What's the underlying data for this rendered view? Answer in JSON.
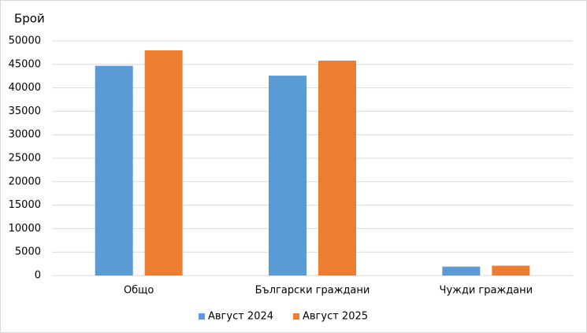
{
  "chart_data": {
    "type": "bar",
    "y_label": "Брой",
    "categories": [
      "Общо",
      "Български граждани",
      "Чужди граждани"
    ],
    "series": [
      {
        "name": "Август 2024",
        "color": "#5b9bd5",
        "values": [
          44700,
          42600,
          1900
        ]
      },
      {
        "name": "Август 2025",
        "color": "#ed7d31",
        "values": [
          48000,
          45800,
          2100
        ]
      }
    ],
    "ylim": [
      0,
      50000
    ],
    "yticks": [
      0,
      5000,
      10000,
      15000,
      20000,
      25000,
      30000,
      35000,
      40000,
      45000,
      50000
    ],
    "grid": true,
    "legend": "bottom"
  }
}
